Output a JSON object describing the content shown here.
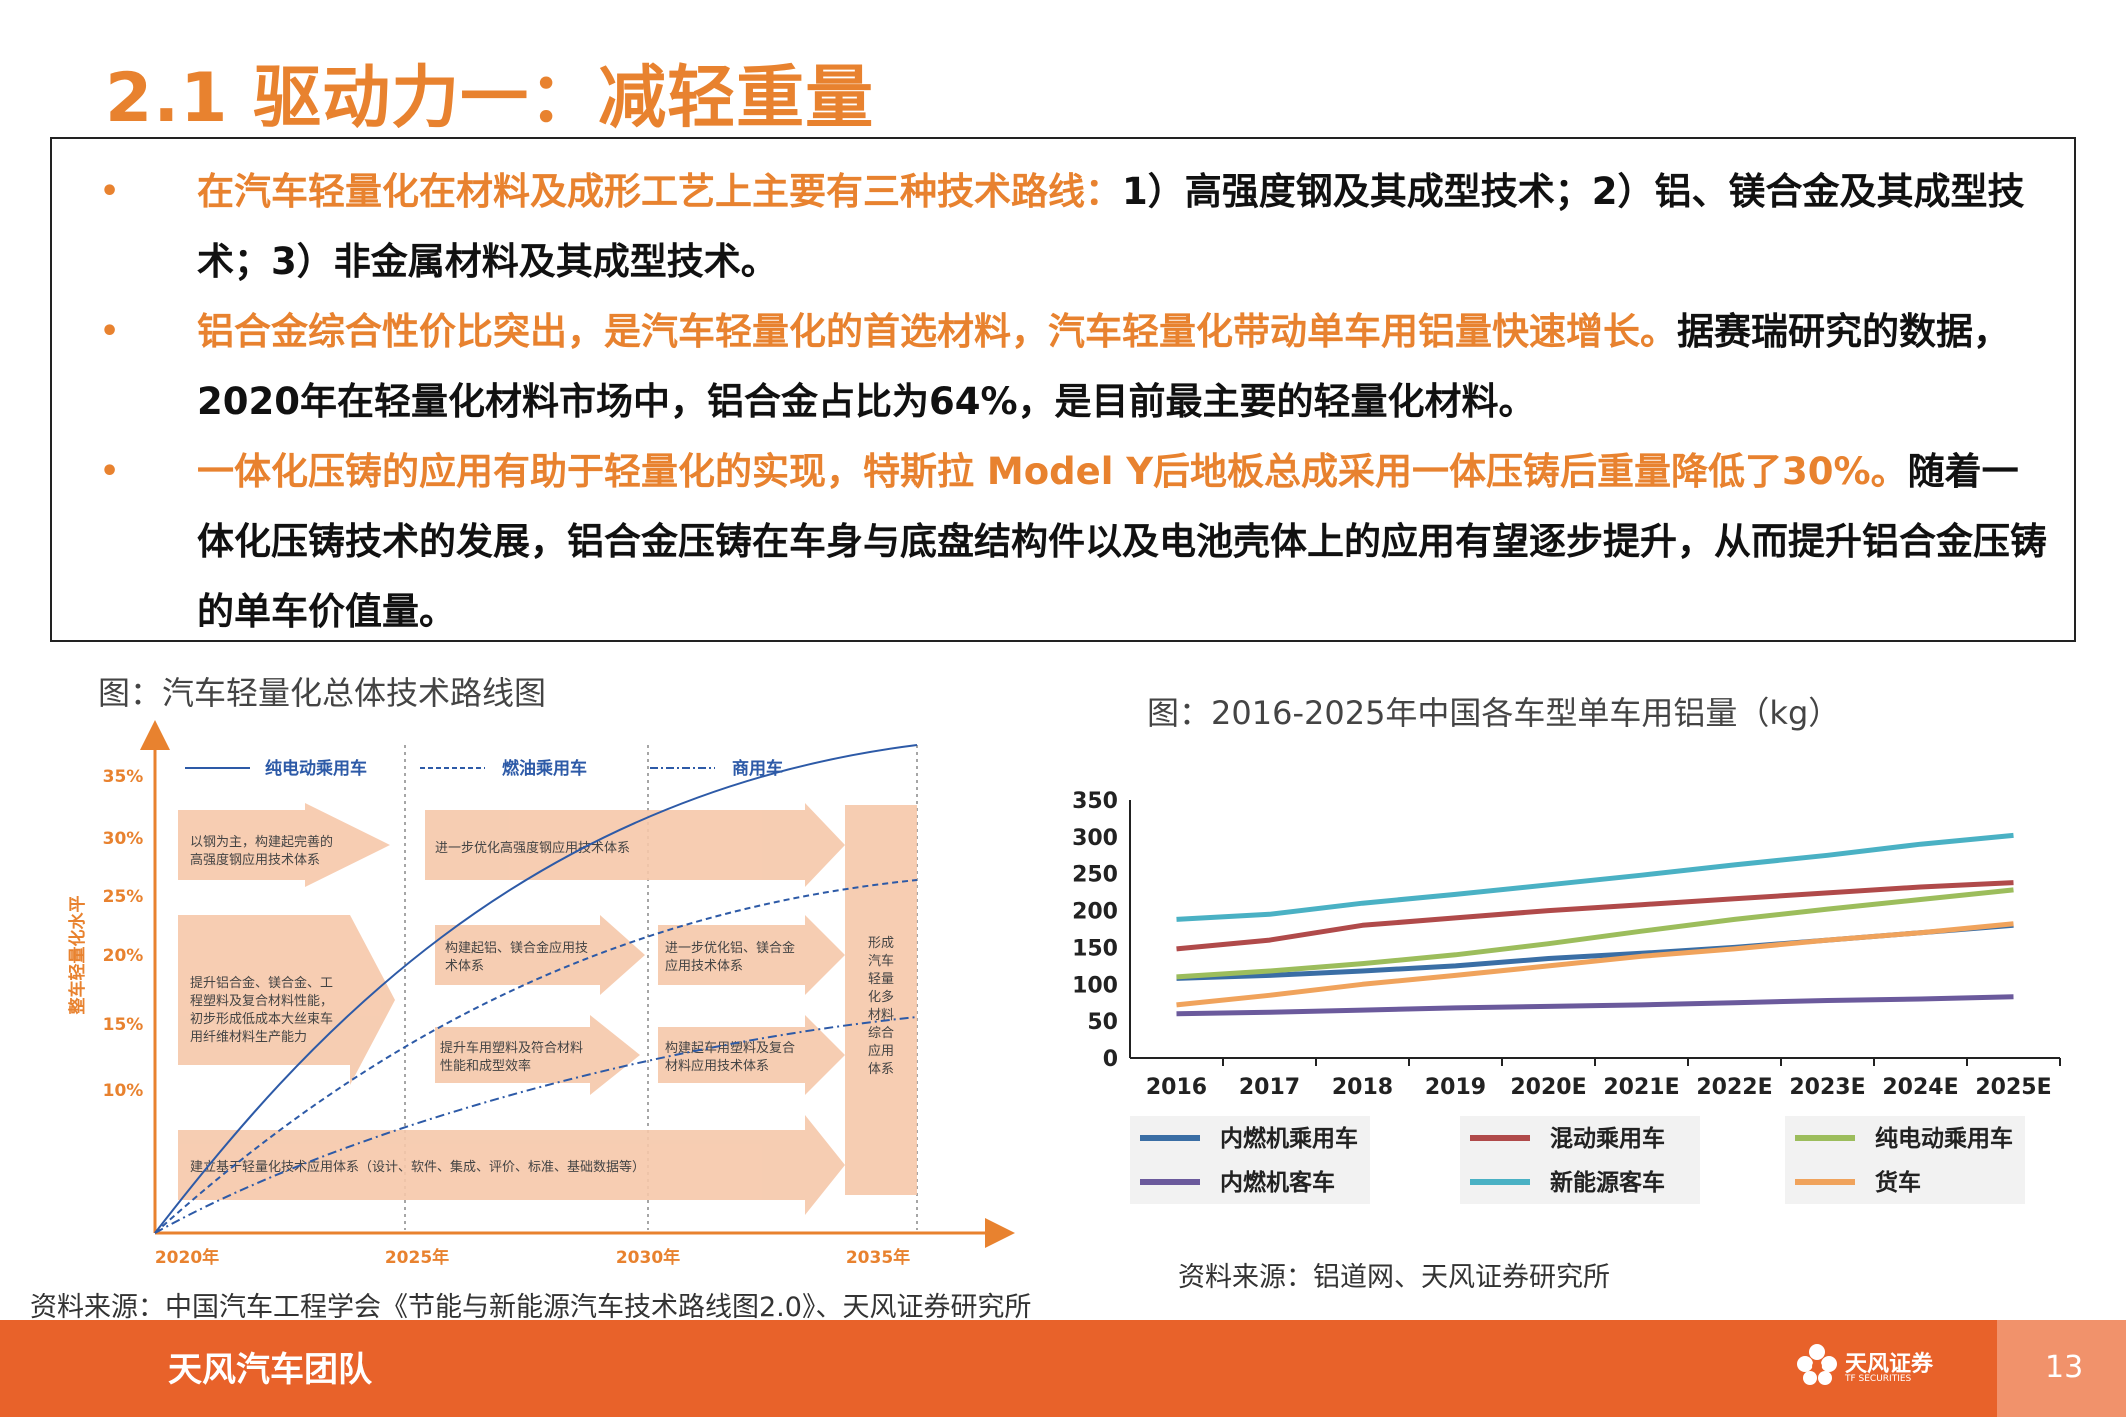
{
  "title": "2.1 驱动力一：减轻重量",
  "bullets": [
    {
      "orange": "在汽车轻量化在材料及成形工艺上主要有三种技术路线：",
      "black": "1）高强度钢及其成型技术；2）铝、镁合金及其成型技术；3）非金属材料及其成型技术。"
    },
    {
      "orange": "铝合金综合性价比突出，是汽车轻量化的首选材料，汽车轻量化带动单车用铝量快速增长。",
      "black": "据赛瑞研究的数据，2020年在轻量化材料市场中，铝合金占比为64%，是目前最主要的轻量化材料。"
    },
    {
      "orange": "一体化压铸的应用有助于轻量化的实现，特斯拉 Model Y后地板总成采用一体压铸后重量降低了30%。",
      "black": "随着一体化压铸技术的发展，铝合金压铸在车身与底盘结构件以及电池壳体上的应用有望逐步提升，从而提升铝合金压铸的单车价值量。"
    }
  ],
  "left_figure": {
    "caption": "图：汽车轻量化总体技术路线图",
    "source": "资料来源：中国汽车工程学会《节能与新能源汽车技术路线图2.0》、天风证券研究所",
    "ylabel": "整车轻量化水平",
    "yticks": [
      "35%",
      "30%",
      "25%",
      "20%",
      "15%",
      "10%"
    ],
    "xticks": [
      "2020年",
      "2025年",
      "2030年",
      "2035年"
    ],
    "legend": [
      "纯电动乘用车",
      "燃油乘用车",
      "商用车"
    ],
    "arrows": {
      "a1": [
        "以钢为主，构建起完善的",
        "高强度钢应用技术体系"
      ],
      "a2": [
        "进一步优化高强度钢应用技术体系"
      ],
      "a3": [
        "提升铝合金、镁合金、工",
        "程塑料及复合材料性能，",
        "初步形成低成本大丝束车",
        "用纤维材料生产能力"
      ],
      "a4": [
        "构建起铝、镁合金应用技",
        "术体系"
      ],
      "a5": [
        "进一步优化铝、镁合金",
        "应用技术体系"
      ],
      "a6": [
        "提升车用塑料及符合材料",
        "性能和成型效率"
      ],
      "a7": [
        "构建起车用塑料及复合",
        "材料应用技术体系"
      ],
      "a8": [
        "建立基于轻量化技术应用体系（设计、软件、集成、评价、标准、基础数据等）"
      ],
      "final": [
        "形成",
        "汽车",
        "轻量",
        "化多",
        "材料",
        "综合",
        "应用",
        "体系"
      ]
    }
  },
  "right_figure": {
    "caption": "图：2016-2025年中国各车型单车用铝量（kg）",
    "source": "资料来源：铝道网、天风证券研究所"
  },
  "chart_data": {
    "type": "line",
    "title": "",
    "categories": [
      "2016",
      "2017",
      "2018",
      "2019",
      "2020E",
      "2021E",
      "2022E",
      "2023E",
      "2024E",
      "2025E"
    ],
    "ylim": [
      0,
      350
    ],
    "yticks": [
      0,
      50,
      100,
      150,
      200,
      250,
      300,
      350
    ],
    "grid": false,
    "legend_position": "bottom",
    "series": [
      {
        "name": "内燃机乘用车",
        "color": "#3a6ea5",
        "values": [
          108,
          112,
          118,
          125,
          135,
          142,
          150,
          160,
          170,
          180
        ]
      },
      {
        "name": "混动乘用车",
        "color": "#b04a4a",
        "values": [
          148,
          160,
          180,
          190,
          200,
          208,
          216,
          224,
          232,
          238
        ]
      },
      {
        "name": "纯电动乘用车",
        "color": "#9cbd5c",
        "values": [
          110,
          118,
          128,
          140,
          155,
          172,
          188,
          202,
          215,
          228
        ]
      },
      {
        "name": "内燃机客车",
        "color": "#6b5a9c",
        "values": [
          60,
          62,
          65,
          68,
          70,
          72,
          75,
          78,
          80,
          83
        ]
      },
      {
        "name": "新能源客车",
        "color": "#4ab1c4",
        "values": [
          188,
          195,
          210,
          222,
          235,
          248,
          262,
          275,
          290,
          302
        ]
      },
      {
        "name": "货车",
        "color": "#f0a35c",
        "values": [
          72,
          85,
          100,
          112,
          125,
          138,
          148,
          160,
          170,
          182
        ]
      }
    ]
  },
  "footer": {
    "team": "天风汽车团队",
    "logo_text": "天风证券",
    "logo_sub": "TF SECURITIES",
    "page": "13"
  }
}
